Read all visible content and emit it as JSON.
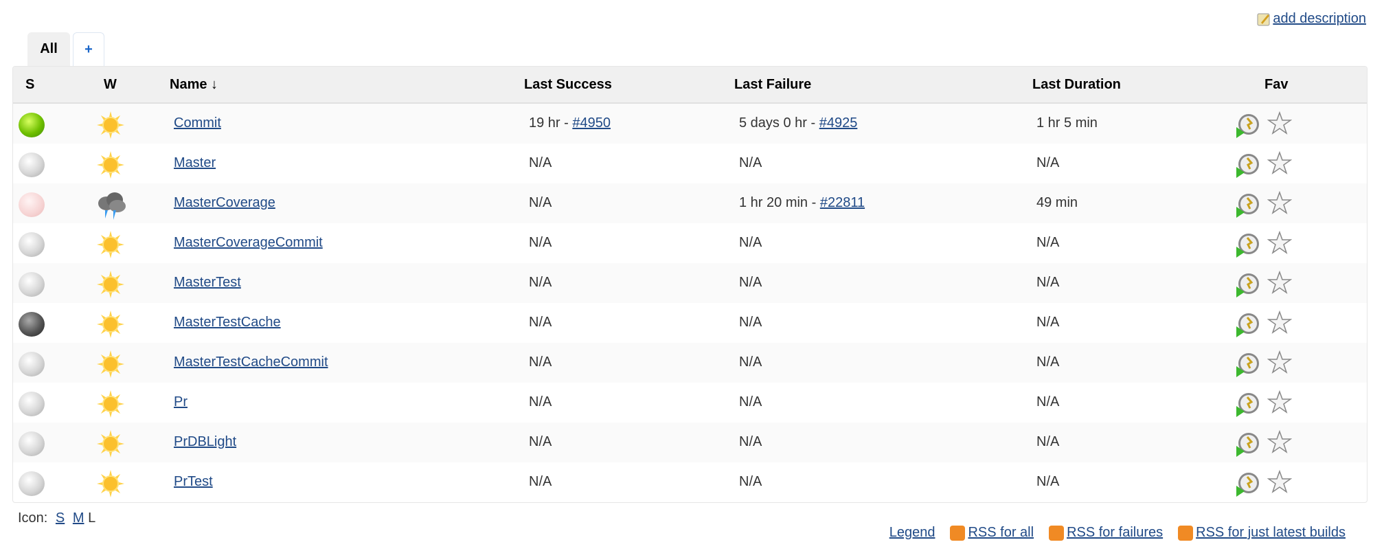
{
  "header": {
    "add_description": "add description"
  },
  "tabs": [
    {
      "label": "All",
      "active": true
    },
    {
      "label": "+"
    }
  ],
  "columns": {
    "s": "S",
    "w": "W",
    "name": "Name ↓",
    "last_success": "Last Success",
    "last_failure": "Last Failure",
    "last_duration": "Last Duration",
    "fav": "Fav"
  },
  "jobs": [
    {
      "name": "Commit",
      "status": "success",
      "weather": "sunny",
      "ls_text": "19 hr - ",
      "ls_link": "#4950",
      "lf_text": "5 days 0 hr - ",
      "lf_link": "#4925",
      "duration": "1 hr 5 min"
    },
    {
      "name": "Master",
      "status": "notbuilt",
      "weather": "sunny",
      "ls_text": "N/A",
      "ls_link": "",
      "lf_text": "N/A",
      "lf_link": "",
      "duration": "N/A"
    },
    {
      "name": "MasterCoverage",
      "status": "failed-disabled",
      "weather": "storm",
      "ls_text": "N/A",
      "ls_link": "",
      "lf_text": "1 hr 20 min - ",
      "lf_link": "#22811",
      "duration": "49 min"
    },
    {
      "name": "MasterCoverageCommit",
      "status": "notbuilt",
      "weather": "sunny",
      "ls_text": "N/A",
      "ls_link": "",
      "lf_text": "N/A",
      "lf_link": "",
      "duration": "N/A"
    },
    {
      "name": "MasterTest",
      "status": "notbuilt",
      "weather": "sunny",
      "ls_text": "N/A",
      "ls_link": "",
      "lf_text": "N/A",
      "lf_link": "",
      "duration": "N/A"
    },
    {
      "name": "MasterTestCache",
      "status": "aborted",
      "weather": "sunny",
      "ls_text": "N/A",
      "ls_link": "",
      "lf_text": "N/A",
      "lf_link": "",
      "duration": "N/A"
    },
    {
      "name": "MasterTestCacheCommit",
      "status": "notbuilt",
      "weather": "sunny",
      "ls_text": "N/A",
      "ls_link": "",
      "lf_text": "N/A",
      "lf_link": "",
      "duration": "N/A"
    },
    {
      "name": "Pr",
      "status": "notbuilt",
      "weather": "sunny",
      "ls_text": "N/A",
      "ls_link": "",
      "lf_text": "N/A",
      "lf_link": "",
      "duration": "N/A"
    },
    {
      "name": "PrDBLight",
      "status": "notbuilt",
      "weather": "sunny",
      "ls_text": "N/A",
      "ls_link": "",
      "lf_text": "N/A",
      "lf_link": "",
      "duration": "N/A"
    },
    {
      "name": "PrTest",
      "status": "notbuilt",
      "weather": "sunny",
      "ls_text": "N/A",
      "ls_link": "",
      "lf_text": "N/A",
      "lf_link": "",
      "duration": "N/A"
    }
  ],
  "footer": {
    "icon_label": "Icon:",
    "sizes": [
      "S",
      "M",
      "L"
    ],
    "legend": "Legend",
    "rss_all": "RSS for all",
    "rss_failures": "RSS for failures",
    "rss_latest": "RSS for just latest builds"
  },
  "colors": {
    "link": "#204a87",
    "success": "#6fbf00",
    "notbuilt": "#d0d0d0",
    "failed": "#f6d3d3",
    "aborted": "#555555",
    "rss": "#f08a24"
  }
}
